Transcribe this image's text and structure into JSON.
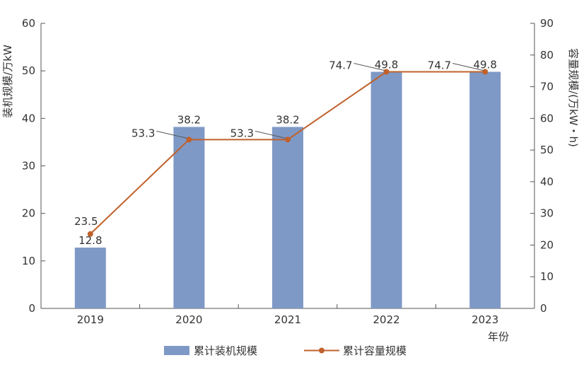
{
  "colors": {
    "bar": "#7f99c6",
    "line": "#c0612b",
    "axis": "#555555",
    "text": "#333333"
  },
  "chart_data": {
    "type": "bar+line",
    "categories": [
      "2019",
      "2020",
      "2021",
      "2022",
      "2023"
    ],
    "xlabel": "年份",
    "ylabel_left": "装机规模/万kW",
    "ylabel_right": "容量规模/(万kW・h)",
    "ylim_left": [
      0,
      60
    ],
    "ylim_right": [
      0,
      90
    ],
    "yticks_left": [
      0,
      10,
      20,
      30,
      40,
      50,
      60
    ],
    "yticks_right": [
      0,
      10,
      20,
      30,
      40,
      50,
      60,
      70,
      80,
      90
    ],
    "grid": false,
    "legend_position": "bottom",
    "series": [
      {
        "name": "累计装机规模",
        "type": "bar",
        "axis": "left",
        "values": [
          12.8,
          38.2,
          38.2,
          49.8,
          49.8
        ],
        "labels": [
          "12.8",
          "38.2",
          "38.2",
          "49.8",
          "49.8"
        ]
      },
      {
        "name": "累计容量规模",
        "type": "line",
        "axis": "right",
        "values": [
          23.5,
          53.3,
          53.3,
          74.7,
          74.7
        ],
        "labels": [
          "23.5",
          "53.3",
          "53.3",
          "74.7",
          "74.7"
        ]
      }
    ]
  }
}
